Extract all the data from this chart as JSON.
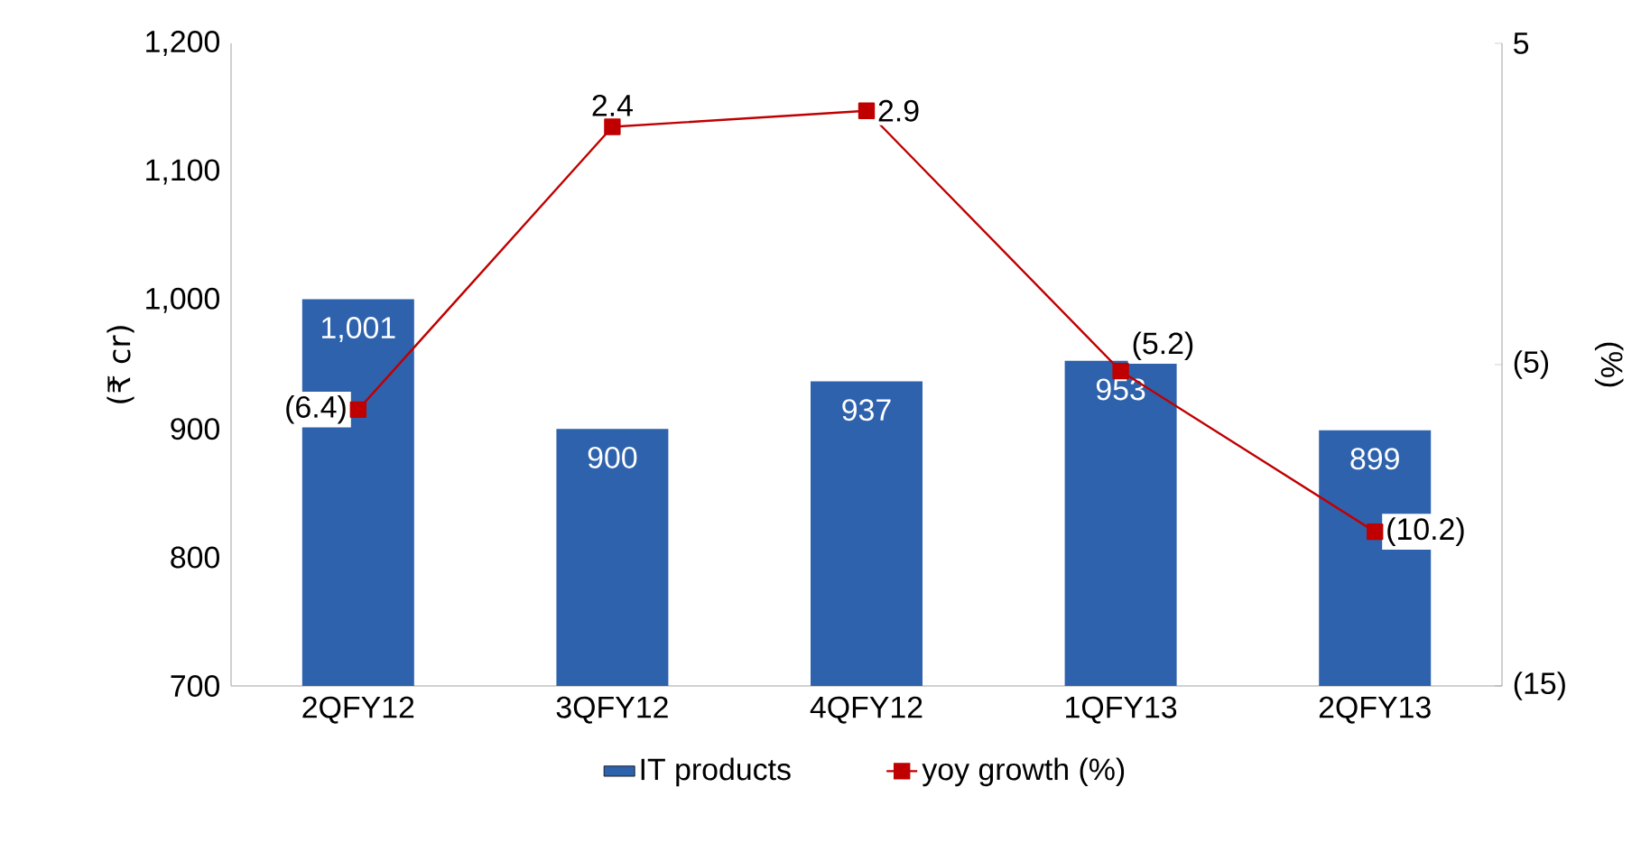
{
  "chart_data": {
    "type": "bar",
    "ylabel": "(₹ cr)",
    "y2label": "(%)",
    "categories": [
      "2QFY12",
      "3QFY12",
      "4QFY12",
      "1QFY13",
      "2QFY13"
    ],
    "series": [
      {
        "name": "IT products",
        "color": "#2e62ad",
        "values": [
          1001,
          900,
          937,
          953,
          899
        ],
        "value_labels": [
          "1,001",
          "900",
          "937",
          "953",
          "899"
        ]
      },
      {
        "name": "yoy growth (%)",
        "type": "line",
        "axis": "y2",
        "marker": "square",
        "color": "#c00000",
        "values": [
          -6.4,
          2.4,
          2.9,
          -5.2,
          -10.2
        ],
        "value_labels": [
          "(6.4)",
          "2.4",
          "2.9",
          "(5.2)",
          "(10.2)"
        ]
      }
    ],
    "ylim": [
      700,
      1200
    ],
    "yticks": [
      700,
      800,
      900,
      {
        "value": 1000,
        "label": "1,000"
      },
      {
        "value": 1100,
        "label": "1,100"
      },
      {
        "value": 1200,
        "label": "1,200"
      }
    ],
    "y2lim": [
      -15,
      5
    ],
    "y2ticks": [
      {
        "value": -15,
        "label": "(15)"
      },
      {
        "value": -5,
        "label": "(5)"
      },
      5
    ],
    "legend": "bottom",
    "grid": false
  }
}
